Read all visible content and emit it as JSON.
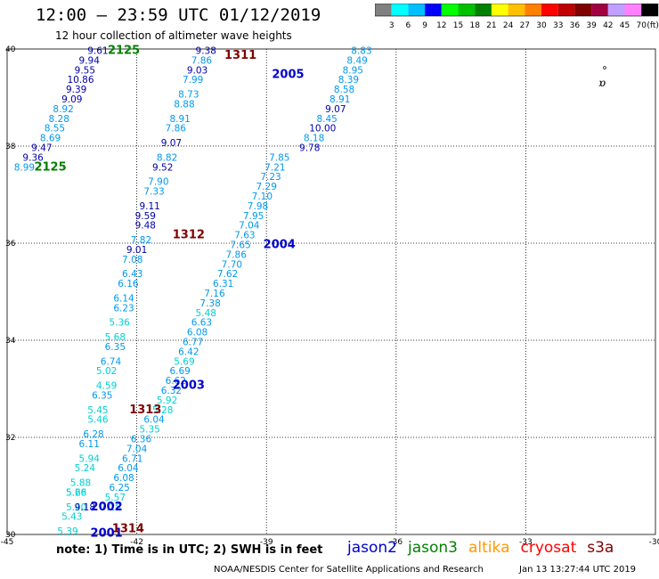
{
  "header": {
    "title": "12:00 — 23:59 UTC 01/12/2019",
    "subtitle": "12 hour collection of altimeter wave heights"
  },
  "colorbar": {
    "unit": "(ft)",
    "colors": [
      "#808080",
      "#00ffff",
      "#00bfff",
      "#0000ff",
      "#00ff00",
      "#00c000",
      "#008000",
      "#ffff00",
      "#ffc000",
      "#ff8000",
      "#ff0000",
      "#c00000",
      "#800000",
      "#a00040",
      "#c0a0ff",
      "#ff80ff",
      "#000000"
    ],
    "labels": [
      "3",
      "6",
      "9",
      "12",
      "15",
      "18",
      "21",
      "24",
      "27",
      "30",
      "33",
      "36",
      "39",
      "42",
      "45",
      "70"
    ]
  },
  "footer": {
    "note": "note:  1) Time is in UTC; 2) SWH is in feet",
    "credit": "NOAA/NESDIS Center for Satellite Applications and Research",
    "timestamp": "Jan 13 13:27:44 UTC 2019",
    "satellites": [
      {
        "name": "jason2",
        "color": "#0000cc"
      },
      {
        "name": "jason3",
        "color": "#008000"
      },
      {
        "name": "altika",
        "color": "#ff9900"
      },
      {
        "name": "cryosat",
        "color": "#ff0000"
      },
      {
        "name": "s3a",
        "color": "#800000"
      }
    ]
  },
  "chart_data": {
    "type": "scatter",
    "xlim": [
      -45,
      -30
    ],
    "ylim": [
      30,
      40
    ],
    "xticks": [
      "-45",
      "-42",
      "-39",
      "-36",
      "-33",
      "-30"
    ],
    "yticks": [
      "30",
      "32",
      "34",
      "36",
      "38",
      "40"
    ],
    "grid": true,
    "tracks": [
      {
        "label": "2125",
        "color": "#008000",
        "at": [
          -42.3,
          39.9
        ],
        "points": [
          {
            "lon": -42.9,
            "lat": 39.9,
            "v": "9.61"
          },
          {
            "lon": -43.1,
            "lat": 39.7,
            "v": "9.94"
          },
          {
            "lon": -43.2,
            "lat": 39.5,
            "v": "9.55"
          },
          {
            "lon": -43.3,
            "lat": 39.3,
            "v": "10.86"
          },
          {
            "lon": -43.4,
            "lat": 39.1,
            "v": "9.39"
          },
          {
            "lon": -43.5,
            "lat": 38.9,
            "v": "9.09"
          },
          {
            "lon": -43.7,
            "lat": 38.7,
            "v": "8.92"
          },
          {
            "lon": -43.8,
            "lat": 38.5,
            "v": "8.28"
          },
          {
            "lon": -43.9,
            "lat": 38.3,
            "v": "8.55"
          },
          {
            "lon": -44.0,
            "lat": 38.1,
            "v": "8.69"
          },
          {
            "lon": -44.2,
            "lat": 37.9,
            "v": "9.47"
          },
          {
            "lon": -44.4,
            "lat": 37.7,
            "v": "9.36"
          },
          {
            "lon": -44.6,
            "lat": 37.5,
            "v": "8.99"
          }
        ]
      },
      {
        "label": "2125",
        "color": "#008000",
        "at": [
          -44.0,
          37.5
        ],
        "points": []
      },
      {
        "label": "1311",
        "color": "#800000",
        "at": [
          -39.6,
          39.8
        ],
        "points": [
          {
            "lon": -40.4,
            "lat": 39.9,
            "v": "9.38"
          },
          {
            "lon": -40.5,
            "lat": 39.7,
            "v": "7.86"
          },
          {
            "lon": -40.6,
            "lat": 39.5,
            "v": "9.03"
          },
          {
            "lon": -40.7,
            "lat": 39.3,
            "v": "7.99"
          },
          {
            "lon": -40.8,
            "lat": 39.0,
            "v": "8.73"
          },
          {
            "lon": -40.9,
            "lat": 38.8,
            "v": "8.88"
          },
          {
            "lon": -41.0,
            "lat": 38.5,
            "v": "8.91"
          },
          {
            "lon": -41.1,
            "lat": 38.3,
            "v": "7.86"
          },
          {
            "lon": -41.2,
            "lat": 38.0,
            "v": "9.07"
          },
          {
            "lon": -41.3,
            "lat": 37.7,
            "v": "8.82"
          },
          {
            "lon": -41.4,
            "lat": 37.5,
            "v": "9.52"
          },
          {
            "lon": -41.5,
            "lat": 37.2,
            "v": "7.90"
          },
          {
            "lon": -41.6,
            "lat": 37.0,
            "v": "7.33"
          },
          {
            "lon": -41.7,
            "lat": 36.7,
            "v": "9.11"
          },
          {
            "lon": -41.8,
            "lat": 36.5,
            "v": "9.59"
          },
          {
            "lon": -41.8,
            "lat": 36.3,
            "v": "9.48"
          },
          {
            "lon": -41.9,
            "lat": 36.0,
            "v": "7.82"
          }
        ]
      },
      {
        "label": "1312",
        "color": "#800000",
        "at": [
          -40.8,
          36.1
        ],
        "points": [
          {
            "lon": -42.0,
            "lat": 35.8,
            "v": "9.01"
          },
          {
            "lon": -42.1,
            "lat": 35.6,
            "v": "7.08"
          },
          {
            "lon": -42.1,
            "lat": 35.3,
            "v": "6.43"
          },
          {
            "lon": -42.2,
            "lat": 35.1,
            "v": "6.16"
          },
          {
            "lon": -42.3,
            "lat": 34.8,
            "v": "6.14"
          },
          {
            "lon": -42.3,
            "lat": 34.6,
            "v": "6.23"
          },
          {
            "lon": -42.4,
            "lat": 34.3,
            "v": "5.36"
          },
          {
            "lon": -42.5,
            "lat": 34.0,
            "v": "5.68"
          },
          {
            "lon": -42.5,
            "lat": 33.8,
            "v": "6.35"
          },
          {
            "lon": -42.6,
            "lat": 33.5,
            "v": "6.74"
          },
          {
            "lon": -42.7,
            "lat": 33.3,
            "v": "5.02"
          },
          {
            "lon": -42.7,
            "lat": 33.0,
            "v": "4.59"
          },
          {
            "lon": -42.8,
            "lat": 32.8,
            "v": "6.35"
          },
          {
            "lon": -42.9,
            "lat": 32.5,
            "v": "5.45"
          },
          {
            "lon": -42.9,
            "lat": 32.3,
            "v": "5.46"
          },
          {
            "lon": -43.0,
            "lat": 32.0,
            "v": "6.28"
          },
          {
            "lon": -43.1,
            "lat": 31.8,
            "v": "6.11"
          },
          {
            "lon": -43.1,
            "lat": 31.5,
            "v": "5.94"
          },
          {
            "lon": -43.2,
            "lat": 31.3,
            "v": "5.24"
          },
          {
            "lon": -43.3,
            "lat": 31.0,
            "v": "5.88"
          },
          {
            "lon": -43.4,
            "lat": 30.8,
            "v": "5.28"
          },
          {
            "lon": -43.4,
            "lat": 30.5,
            "v": "5.40"
          },
          {
            "lon": -43.5,
            "lat": 30.3,
            "v": "5.43"
          },
          {
            "lon": -43.6,
            "lat": 30.0,
            "v": "5.39"
          }
        ]
      },
      {
        "label": "2005",
        "color": "#0000cc",
        "at": [
          -38.5,
          39.4
        ],
        "points": [
          {
            "lon": -36.8,
            "lat": 39.9,
            "v": "8.83"
          },
          {
            "lon": -36.9,
            "lat": 39.7,
            "v": "8.49"
          },
          {
            "lon": -37.0,
            "lat": 39.5,
            "v": "8.95"
          },
          {
            "lon": -37.1,
            "lat": 39.3,
            "v": "8.39"
          },
          {
            "lon": -37.2,
            "lat": 39.1,
            "v": "8.58"
          },
          {
            "lon": -37.3,
            "lat": 38.9,
            "v": "8.91"
          },
          {
            "lon": -37.4,
            "lat": 38.7,
            "v": "9.07"
          },
          {
            "lon": -37.6,
            "lat": 38.5,
            "v": "8.45"
          },
          {
            "lon": -37.7,
            "lat": 38.3,
            "v": "10.00"
          },
          {
            "lon": -37.9,
            "lat": 38.1,
            "v": "8.18"
          },
          {
            "lon": -38.0,
            "lat": 37.9,
            "v": "9.78"
          }
        ]
      },
      {
        "label": "2004",
        "color": "#0000cc",
        "at": [
          -38.7,
          35.9
        ],
        "points": [
          {
            "lon": -38.7,
            "lat": 37.7,
            "v": "7.85"
          },
          {
            "lon": -38.8,
            "lat": 37.5,
            "v": "7.21"
          },
          {
            "lon": -38.9,
            "lat": 37.3,
            "v": "7.23"
          },
          {
            "lon": -39.0,
            "lat": 37.1,
            "v": "7.29"
          },
          {
            "lon": -39.1,
            "lat": 36.9,
            "v": "7.10"
          },
          {
            "lon": -39.2,
            "lat": 36.7,
            "v": "7.98"
          },
          {
            "lon": -39.3,
            "lat": 36.5,
            "v": "7.95"
          },
          {
            "lon": -39.4,
            "lat": 36.3,
            "v": "7.04"
          },
          {
            "lon": -39.5,
            "lat": 36.1,
            "v": "7.63"
          },
          {
            "lon": -39.6,
            "lat": 35.9,
            "v": "7.65"
          },
          {
            "lon": -39.7,
            "lat": 35.7,
            "v": "7.86"
          },
          {
            "lon": -39.8,
            "lat": 35.5,
            "v": "7.70"
          },
          {
            "lon": -39.9,
            "lat": 35.3,
            "v": "7.62"
          },
          {
            "lon": -40.0,
            "lat": 35.1,
            "v": "6.31"
          },
          {
            "lon": -40.2,
            "lat": 34.9,
            "v": "7.16"
          },
          {
            "lon": -40.3,
            "lat": 34.7,
            "v": "7.38"
          },
          {
            "lon": -40.4,
            "lat": 34.5,
            "v": "5.48"
          },
          {
            "lon": -40.5,
            "lat": 34.3,
            "v": "6.63"
          },
          {
            "lon": -40.6,
            "lat": 34.1,
            "v": "6.08"
          },
          {
            "lon": -40.7,
            "lat": 33.9,
            "v": "6.77"
          },
          {
            "lon": -40.8,
            "lat": 33.7,
            "v": "6.42"
          },
          {
            "lon": -40.9,
            "lat": 33.5,
            "v": "5.69"
          }
        ]
      },
      {
        "label": "2003",
        "color": "#0000cc",
        "at": [
          -40.8,
          33.0
        ],
        "points": [
          {
            "lon": -41.0,
            "lat": 33.3,
            "v": "6.69"
          },
          {
            "lon": -41.1,
            "lat": 33.1,
            "v": "6.62"
          },
          {
            "lon": -41.2,
            "lat": 32.9,
            "v": "6.32"
          },
          {
            "lon": -41.3,
            "lat": 32.7,
            "v": "5.92"
          },
          {
            "lon": -41.4,
            "lat": 32.5,
            "v": "5.28"
          },
          {
            "lon": -41.6,
            "lat": 32.3,
            "v": "6.04"
          },
          {
            "lon": -41.7,
            "lat": 32.1,
            "v": "5.35"
          },
          {
            "lon": -41.9,
            "lat": 31.9,
            "v": "6.36"
          },
          {
            "lon": -42.0,
            "lat": 31.7,
            "v": "7.04"
          },
          {
            "lon": -42.1,
            "lat": 31.5,
            "v": "6.71"
          },
          {
            "lon": -42.2,
            "lat": 31.3,
            "v": "6.04"
          },
          {
            "lon": -42.3,
            "lat": 31.1,
            "v": "6.08"
          },
          {
            "lon": -42.4,
            "lat": 30.9,
            "v": "6.25"
          },
          {
            "lon": -42.5,
            "lat": 30.7,
            "v": "5.57"
          },
          {
            "lon": -42.6,
            "lat": 30.5,
            "v": "7.28"
          }
        ]
      },
      {
        "label": "1313",
        "color": "#800000",
        "at": [
          -41.8,
          32.5
        ],
        "points": []
      },
      {
        "label": "2002",
        "color": "#0000cc",
        "at": [
          -42.7,
          30.5
        ],
        "points": [
          {
            "lon": -43.2,
            "lat": 30.5,
            "v": "9.18"
          },
          {
            "lon": -43.4,
            "lat": 30.8,
            "v": "5.66"
          }
        ]
      },
      {
        "label": "2001",
        "color": "#0000cc",
        "at": [
          -42.7,
          29.95
        ],
        "points": []
      },
      {
        "label": "1314",
        "color": "#800000",
        "at": [
          -42.2,
          30.05
        ],
        "points": []
      }
    ],
    "colorscale": [
      {
        "max": 3,
        "color": "#808080"
      },
      {
        "max": 6,
        "color": "#00cccc"
      },
      {
        "max": 9,
        "color": "#00aaff"
      },
      {
        "max": 12,
        "color": "#0000aa"
      }
    ]
  }
}
